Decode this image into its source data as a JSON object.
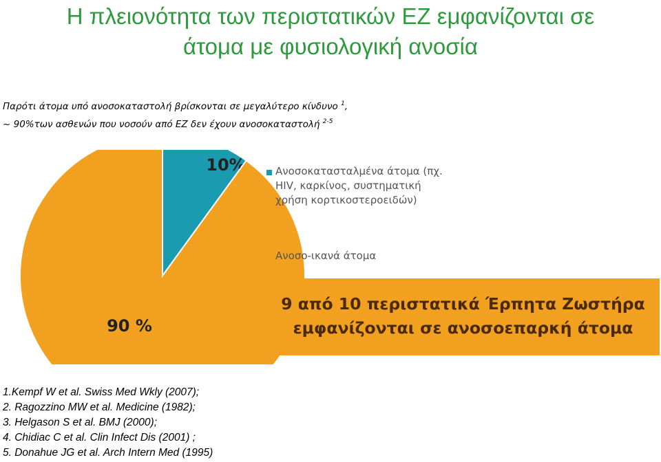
{
  "title_line1": "Η πλειονότητα των περιστατικών ΕΖ εμφανίζονται σε",
  "title_line2": "άτομα με φυσιολογική ανοσία",
  "subtitle": {
    "line1_text": "Παρότι άτομα υπό ανοσοκαταστολή βρίσκονται σε μεγαλύτερο κίνδυνο",
    "line1_ref": "1",
    "line1_tail": ",",
    "line2_text": "~ 90%των ασθενών που νοσούν από ΕΖ δεν έχουν ανοσοκαταστολή",
    "line2_ref": "2-5"
  },
  "chart_data": {
    "type": "pie",
    "series": [
      {
        "name": "Ανοσοκατασταλμένα άτομα (πχ. HIV, καρκίνος, συστηματική χρήση κορτικοστεροειδών)",
        "value": 10,
        "label": "10%",
        "color": "#1a9bb0"
      },
      {
        "name": "Ανοσο-ικανά άτομα",
        "value": 90,
        "label": "90 %",
        "color": "#f2a020"
      }
    ]
  },
  "legend": {
    "item1_line1": "Ανοσοκατασταλμένα άτομα (πχ.",
    "item1_line2": "HIV, καρκίνος, συστηματική",
    "item1_line3": "χρήση κορτικοστεροειδών)",
    "item2": "Ανοσο-ικανά άτομα"
  },
  "banner": {
    "line1": "9 από 10 περιστατικά Έρπητα Ζωστήρα",
    "line2": "εμφανίζονται σε ανοσοεπαρκή άτομα",
    "color": "#f2a020"
  },
  "references": [
    "1.Kempf W et al. Swiss Med Wkly (2007);",
    "2. Ragozzino MW et al. Medicine (1982);",
    "3. Helgason S et al. BMJ (2000);",
    "4. Chidiac C et al. Clin Infect Dis (2001) ;",
    "5. Donahue JG et al. Arch Intern Med (1995)"
  ]
}
